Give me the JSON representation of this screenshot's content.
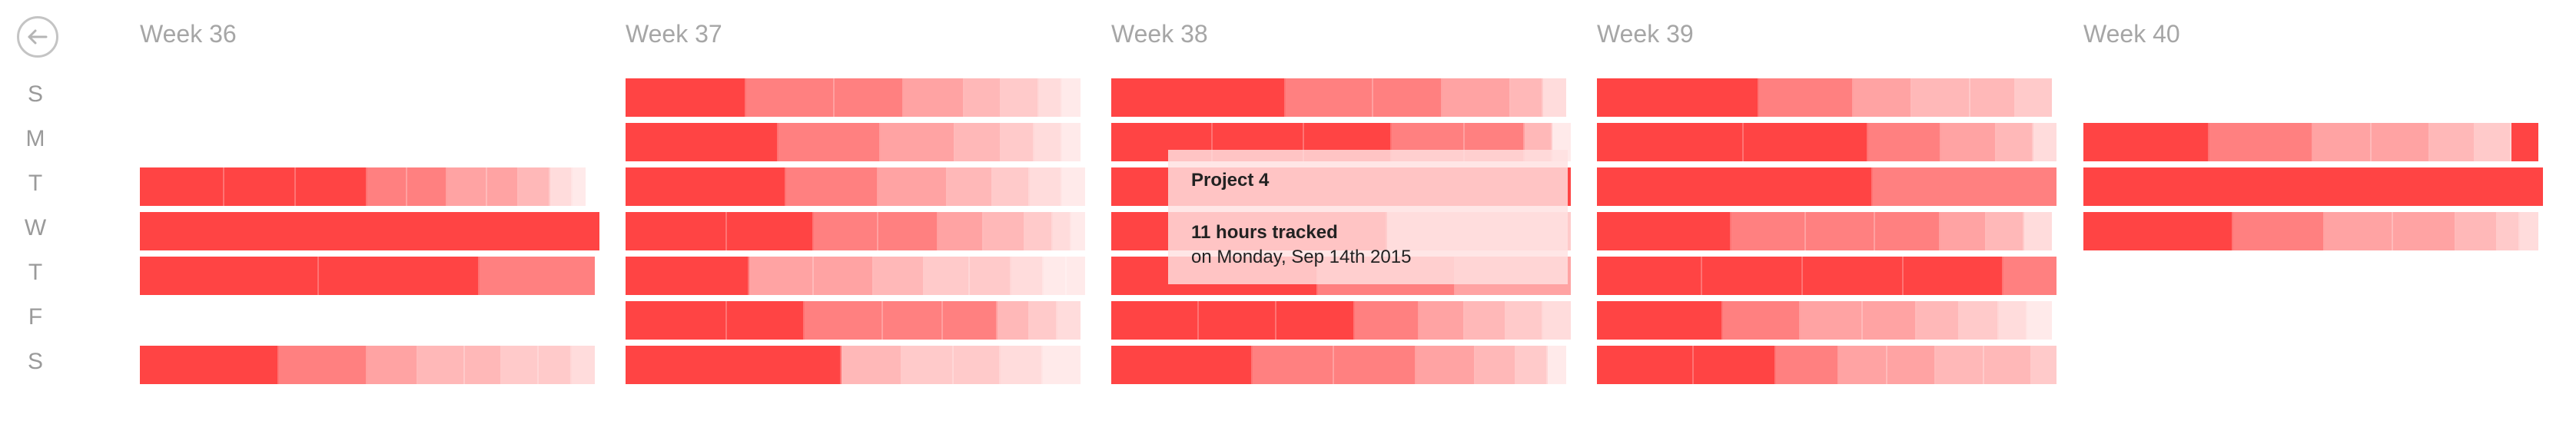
{
  "nav": {
    "back_icon": "arrow-left-icon"
  },
  "day_labels": [
    "S",
    "M",
    "T",
    "W",
    "T",
    "F",
    "S"
  ],
  "colors": {
    "shades": [
      "#ff4444",
      "#ff8080",
      "#ffa3a3",
      "#ffb8b8",
      "#ffcaca",
      "#ffdcdc",
      "#ffeaea"
    ],
    "background": "#ffffff",
    "title": "#a6a6a6"
  },
  "weeks": [
    {
      "title": "Week 36",
      "days": [
        null,
        null,
        {
          "total_fraction": 0.97,
          "segments": [
            {
              "s": 0,
              "v": 19
            },
            {
              "s": 0,
              "v": 16
            },
            {
              "s": 0,
              "v": 16
            },
            {
              "s": 1,
              "v": 9
            },
            {
              "s": 1,
              "v": 9
            },
            {
              "s": 2,
              "v": 9
            },
            {
              "s": 2,
              "v": 7
            },
            {
              "s": 3,
              "v": 7
            },
            {
              "s": 5,
              "v": 5
            },
            {
              "s": 6,
              "v": 3
            }
          ]
        },
        {
          "total_fraction": 1.0,
          "segments": [
            {
              "s": 0,
              "v": 100
            }
          ]
        },
        {
          "total_fraction": 0.99,
          "segments": [
            {
              "s": 0,
              "v": 39
            },
            {
              "s": 0,
              "v": 35
            },
            {
              "s": 1,
              "v": 25
            }
          ]
        },
        null,
        {
          "total_fraction": 0.99,
          "segments": [
            {
              "s": 0,
              "v": 30
            },
            {
              "s": 1,
              "v": 19
            },
            {
              "s": 2,
              "v": 11
            },
            {
              "s": 3,
              "v": 10
            },
            {
              "s": 3,
              "v": 8
            },
            {
              "s": 4,
              "v": 8
            },
            {
              "s": 4,
              "v": 7
            },
            {
              "s": 5,
              "v": 5
            }
          ]
        }
      ]
    },
    {
      "title": "Week 37",
      "days": [
        {
          "total_fraction": 0.99,
          "segments": [
            {
              "s": 0,
              "v": 26
            },
            {
              "s": 1,
              "v": 19
            },
            {
              "s": 1,
              "v": 15
            },
            {
              "s": 2,
              "v": 13
            },
            {
              "s": 3,
              "v": 8
            },
            {
              "s": 4,
              "v": 8
            },
            {
              "s": 5,
              "v": 5
            },
            {
              "s": 6,
              "v": 4
            }
          ]
        },
        {
          "total_fraction": 0.99,
          "segments": [
            {
              "s": 0,
              "v": 33
            },
            {
              "s": 1,
              "v": 22
            },
            {
              "s": 2,
              "v": 16
            },
            {
              "s": 3,
              "v": 10
            },
            {
              "s": 4,
              "v": 7
            },
            {
              "s": 5,
              "v": 6
            },
            {
              "s": 6,
              "v": 4
            }
          ]
        },
        {
          "total_fraction": 1.0,
          "segments": [
            {
              "s": 0,
              "v": 35
            },
            {
              "s": 1,
              "v": 20
            },
            {
              "s": 2,
              "v": 15
            },
            {
              "s": 3,
              "v": 10
            },
            {
              "s": 4,
              "v": 8
            },
            {
              "s": 5,
              "v": 7
            },
            {
              "s": 6,
              "v": 5
            }
          ]
        },
        {
          "total_fraction": 1.0,
          "segments": [
            {
              "s": 0,
              "v": 22
            },
            {
              "s": 0,
              "v": 19
            },
            {
              "s": 1,
              "v": 14
            },
            {
              "s": 1,
              "v": 13
            },
            {
              "s": 2,
              "v": 10
            },
            {
              "s": 3,
              "v": 9
            },
            {
              "s": 4,
              "v": 6
            },
            {
              "s": 5,
              "v": 4
            },
            {
              "s": 6,
              "v": 3
            }
          ]
        },
        {
          "total_fraction": 1.0,
          "segments": [
            {
              "s": 0,
              "v": 27
            },
            {
              "s": 2,
              "v": 14
            },
            {
              "s": 2,
              "v": 13
            },
            {
              "s": 3,
              "v": 11
            },
            {
              "s": 4,
              "v": 10
            },
            {
              "s": 4,
              "v": 9
            },
            {
              "s": 5,
              "v": 7
            },
            {
              "s": 6,
              "v": 5
            },
            {
              "s": 6,
              "v": 4
            }
          ]
        },
        {
          "total_fraction": 0.99,
          "segments": [
            {
              "s": 0,
              "v": 22
            },
            {
              "s": 0,
              "v": 17
            },
            {
              "s": 1,
              "v": 17
            },
            {
              "s": 1,
              "v": 13
            },
            {
              "s": 1,
              "v": 12
            },
            {
              "s": 3,
              "v": 7
            },
            {
              "s": 4,
              "v": 6
            },
            {
              "s": 5,
              "v": 5
            }
          ]
        },
        {
          "total_fraction": 0.99,
          "segments": [
            {
              "s": 0,
              "v": 46
            },
            {
              "s": 3,
              "v": 13
            },
            {
              "s": 4,
              "v": 11
            },
            {
              "s": 4,
              "v": 10
            },
            {
              "s": 5,
              "v": 9
            },
            {
              "s": 6,
              "v": 8
            }
          ]
        }
      ]
    },
    {
      "title": "Week 38",
      "days": [
        {
          "total_fraction": 0.99,
          "segments": [
            {
              "s": 0,
              "v": 38
            },
            {
              "s": 1,
              "v": 19
            },
            {
              "s": 1,
              "v": 15
            },
            {
              "s": 2,
              "v": 15
            },
            {
              "s": 3,
              "v": 7
            },
            {
              "s": 5,
              "v": 5
            }
          ]
        },
        {
          "total_fraction": 1.0,
          "segments": [
            {
              "s": 0,
              "v": 22
            },
            {
              "s": 0,
              "v": 20
            },
            {
              "s": 0,
              "v": 19
            },
            {
              "s": 1,
              "v": 16
            },
            {
              "s": 1,
              "v": 13
            },
            {
              "s": 3,
              "v": 6
            },
            {
              "s": 6,
              "v": 4
            }
          ]
        },
        {
          "total_fraction": 1.0,
          "segments": [
            {
              "s": 0,
              "v": 100
            }
          ]
        },
        {
          "total_fraction": 1.0,
          "segments": [
            {
              "s": 0,
              "v": 60
            },
            {
              "s": 4,
              "v": 40
            }
          ]
        },
        {
          "total_fraction": 1.0,
          "segments": [
            {
              "s": 0,
              "v": 45
            },
            {
              "s": 1,
              "v": 30
            },
            {
              "s": 2,
              "v": 25
            }
          ]
        },
        {
          "total_fraction": 1.0,
          "segments": [
            {
              "s": 0,
              "v": 19
            },
            {
              "s": 0,
              "v": 17
            },
            {
              "s": 0,
              "v": 17
            },
            {
              "s": 1,
              "v": 14
            },
            {
              "s": 2,
              "v": 10
            },
            {
              "s": 3,
              "v": 9
            },
            {
              "s": 4,
              "v": 8
            },
            {
              "s": 5,
              "v": 6
            }
          ]
        },
        {
          "total_fraction": 0.99,
          "segments": [
            {
              "s": 0,
              "v": 31
            },
            {
              "s": 1,
              "v": 18
            },
            {
              "s": 1,
              "v": 18
            },
            {
              "s": 2,
              "v": 13
            },
            {
              "s": 3,
              "v": 9
            },
            {
              "s": 4,
              "v": 7
            },
            {
              "s": 6,
              "v": 4
            }
          ]
        }
      ]
    },
    {
      "title": "Week 39",
      "days": [
        {
          "total_fraction": 0.99,
          "segments": [
            {
              "s": 0,
              "v": 36
            },
            {
              "s": 1,
              "v": 21
            },
            {
              "s": 2,
              "v": 13
            },
            {
              "s": 3,
              "v": 13
            },
            {
              "s": 3,
              "v": 10
            },
            {
              "s": 4,
              "v": 8
            }
          ]
        },
        {
          "total_fraction": 1.0,
          "segments": [
            {
              "s": 0,
              "v": 32
            },
            {
              "s": 0,
              "v": 27
            },
            {
              "s": 1,
              "v": 16
            },
            {
              "s": 2,
              "v": 12
            },
            {
              "s": 3,
              "v": 8
            },
            {
              "s": 5,
              "v": 5
            }
          ]
        },
        {
          "total_fraction": 1.0,
          "segments": [
            {
              "s": 0,
              "v": 60
            },
            {
              "s": 1,
              "v": 40
            }
          ]
        },
        {
          "total_fraction": 0.99,
          "segments": [
            {
              "s": 0,
              "v": 29
            },
            {
              "s": 1,
              "v": 16
            },
            {
              "s": 1,
              "v": 15
            },
            {
              "s": 1,
              "v": 14
            },
            {
              "s": 2,
              "v": 10
            },
            {
              "s": 3,
              "v": 8
            },
            {
              "s": 5,
              "v": 6
            }
          ]
        },
        {
          "total_fraction": 1.0,
          "segments": [
            {
              "s": 0,
              "v": 22
            },
            {
              "s": 0,
              "v": 21
            },
            {
              "s": 0,
              "v": 21
            },
            {
              "s": 0,
              "v": 21
            },
            {
              "s": 1,
              "v": 11
            }
          ]
        },
        {
          "total_fraction": 0.99,
          "segments": [
            {
              "s": 0,
              "v": 26
            },
            {
              "s": 1,
              "v": 16
            },
            {
              "s": 2,
              "v": 13
            },
            {
              "s": 2,
              "v": 11
            },
            {
              "s": 3,
              "v": 9
            },
            {
              "s": 4,
              "v": 8
            },
            {
              "s": 5,
              "v": 6
            },
            {
              "s": 6,
              "v": 5
            }
          ]
        },
        {
          "total_fraction": 1.0,
          "segments": [
            {
              "s": 0,
              "v": 20
            },
            {
              "s": 0,
              "v": 17
            },
            {
              "s": 1,
              "v": 13
            },
            {
              "s": 2,
              "v": 10
            },
            {
              "s": 2,
              "v": 10
            },
            {
              "s": 3,
              "v": 10
            },
            {
              "s": 3,
              "v": 10
            },
            {
              "s": 4,
              "v": 5
            }
          ]
        }
      ]
    },
    {
      "title": "Week 40",
      "days": [
        null,
        {
          "total_fraction": 0.99,
          "segments": [
            {
              "s": 0,
              "v": 28
            },
            {
              "s": 1,
              "v": 23
            },
            {
              "s": 2,
              "v": 13
            },
            {
              "s": 2,
              "v": 13
            },
            {
              "s": 3,
              "v": 10
            },
            {
              "s": 4,
              "v": 8
            },
            {
              "s": 0,
              "v": 6
            }
          ]
        },
        {
          "total_fraction": 1.0,
          "segments": [
            {
              "s": 0,
              "v": 100
            }
          ]
        },
        {
          "total_fraction": 0.99,
          "segments": [
            {
              "s": 0,
              "v": 33
            },
            {
              "s": 1,
              "v": 20
            },
            {
              "s": 2,
              "v": 15
            },
            {
              "s": 2,
              "v": 14
            },
            {
              "s": 3,
              "v": 9
            },
            {
              "s": 4,
              "v": 5
            },
            {
              "s": 5,
              "v": 4
            }
          ]
        },
        null,
        null,
        null
      ]
    }
  ],
  "tooltip": {
    "project": "Project 4",
    "hours": "11 hours tracked",
    "date": "on Monday, Sep 14th 2015"
  }
}
